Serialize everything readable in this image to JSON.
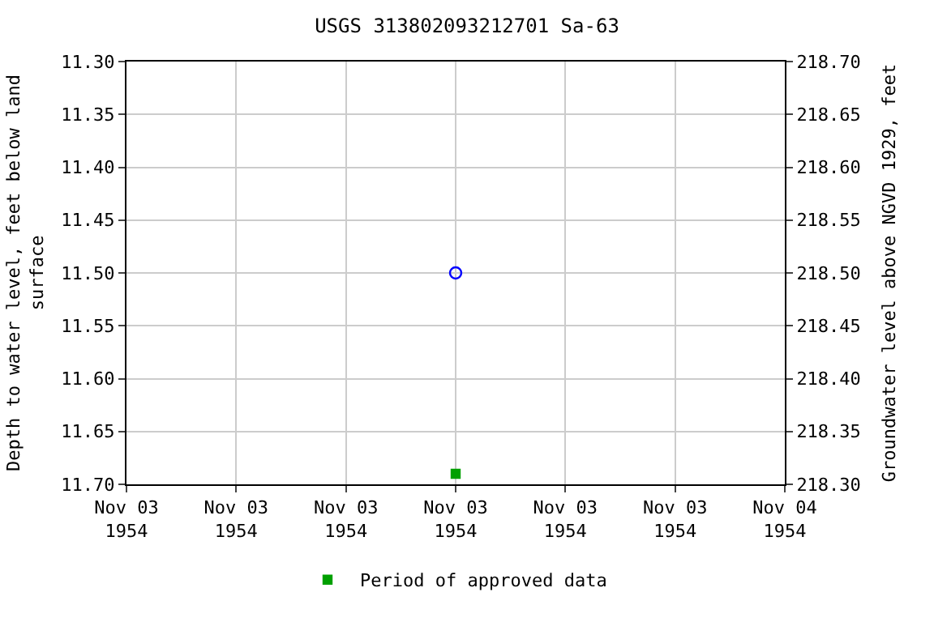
{
  "chart_data": {
    "type": "scatter",
    "title": "USGS 313802093212701 Sa-63",
    "ylabel": "Depth to water level, feet below land\nsurface",
    "y2label": "Groundwater level above NGVD 1929, feet",
    "series": [
      {
        "color": "#0000ff",
        "marker": "circle",
        "x": [
          "1954-11-03T12:00"
        ],
        "values": [
          11.5
        ]
      },
      {
        "name": "Period of approved data",
        "color": "#00a000",
        "marker": "square",
        "x": [
          "1954-11-03T12:00"
        ],
        "values": [
          11.69
        ]
      }
    ],
    "xlim": [
      "1954-11-03T00:00",
      "1954-11-04T00:00"
    ],
    "xticks": [
      {
        "value": "1954-11-03T00:00",
        "label": "Nov 03\n1954"
      },
      {
        "value": "1954-11-03T04:00",
        "label": "Nov 03\n1954"
      },
      {
        "value": "1954-11-03T08:00",
        "label": "Nov 03\n1954"
      },
      {
        "value": "1954-11-03T12:00",
        "label": "Nov 03\n1954"
      },
      {
        "value": "1954-11-03T16:00",
        "label": "Nov 03\n1954"
      },
      {
        "value": "1954-11-03T20:00",
        "label": "Nov 03\n1954"
      },
      {
        "value": "1954-11-04T00:00",
        "label": "Nov 04\n1954"
      }
    ],
    "ylim": [
      11.7,
      11.3
    ],
    "yticks": [
      {
        "value": 11.3,
        "label": "11.30"
      },
      {
        "value": 11.35,
        "label": "11.35"
      },
      {
        "value": 11.4,
        "label": "11.40"
      },
      {
        "value": 11.45,
        "label": "11.45"
      },
      {
        "value": 11.5,
        "label": "11.50"
      },
      {
        "value": 11.55,
        "label": "11.55"
      },
      {
        "value": 11.6,
        "label": "11.60"
      },
      {
        "value": 11.65,
        "label": "11.65"
      },
      {
        "value": 11.7,
        "label": "11.70"
      }
    ],
    "y2lim": [
      218.3,
      218.7
    ],
    "y2ticks": [
      {
        "value": 218.3,
        "label": "218.30"
      },
      {
        "value": 218.35,
        "label": "218.35"
      },
      {
        "value": 218.4,
        "label": "218.40"
      },
      {
        "value": 218.45,
        "label": "218.45"
      },
      {
        "value": 218.5,
        "label": "218.50"
      },
      {
        "value": 218.55,
        "label": "218.55"
      },
      {
        "value": 218.6,
        "label": "218.60"
      },
      {
        "value": 218.65,
        "label": "218.65"
      },
      {
        "value": 218.7,
        "label": "218.70"
      }
    ],
    "grid": true,
    "legend": "bottom"
  }
}
